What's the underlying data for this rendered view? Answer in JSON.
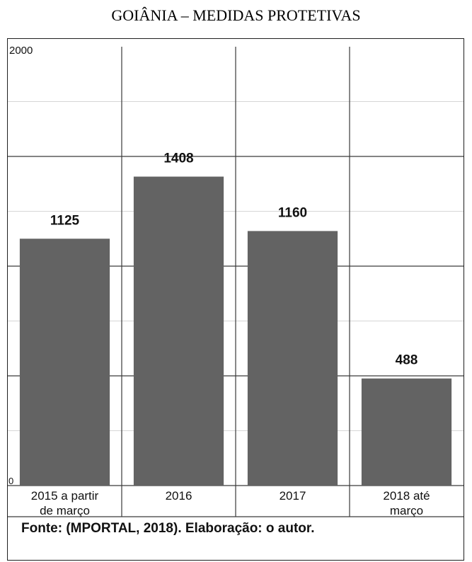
{
  "page": {
    "title": "GOIÂNIA – MEDIDAS PROTETIVAS",
    "source": "Fonte: (MPORTAL, 2018). Elaboração: o autor."
  },
  "colors": {
    "bar": "#636363",
    "grid_major": "#3a3a3a",
    "grid_minor": "#d6d6d6",
    "text": "#111111"
  },
  "chart_data": {
    "type": "bar",
    "categories": [
      [
        "2015 a partir",
        "de março"
      ],
      [
        "2016"
      ],
      [
        "2017"
      ],
      [
        "2018 até",
        "março"
      ]
    ],
    "values": [
      1125,
      1408,
      1160,
      488
    ],
    "ylim": [
      0,
      2000
    ],
    "y_tick_labels": [
      "0",
      "2000"
    ],
    "grid": true,
    "legend": "none"
  }
}
